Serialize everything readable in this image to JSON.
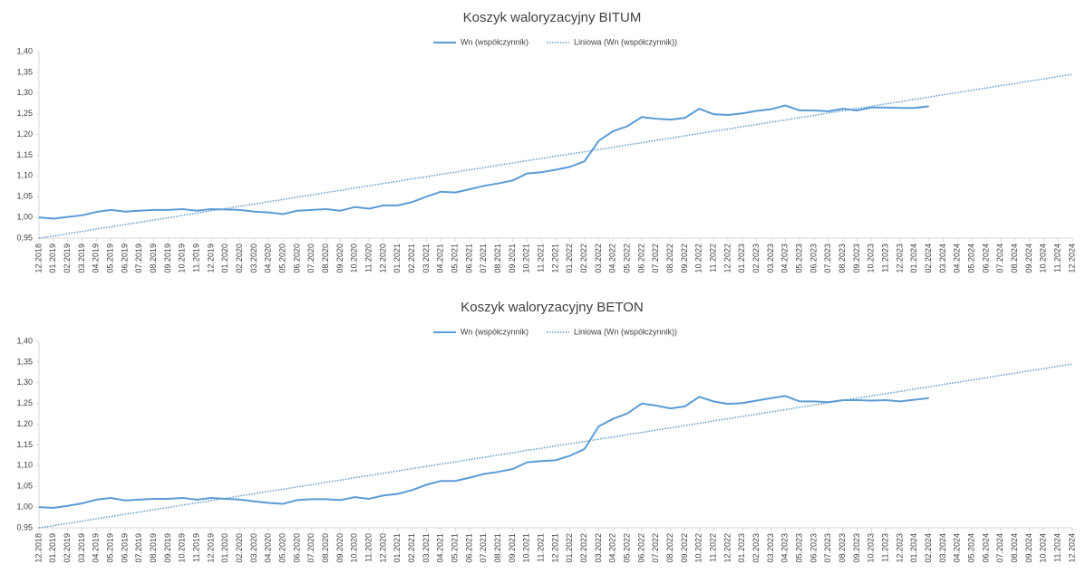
{
  "chart_data": [
    {
      "type": "line",
      "title": "Koszyk waloryzacyjny BITUM",
      "categories": [
        "12.2018",
        "01.2019",
        "02.2019",
        "03.2019",
        "04.2019",
        "05.2019",
        "06.2019",
        "07.2019",
        "08.2019",
        "09.2019",
        "10.2019",
        "11.2019",
        "12.2019",
        "01.2020",
        "02.2020",
        "03.2020",
        "04.2020",
        "05.2020",
        "06.2020",
        "07.2020",
        "08.2020",
        "09.2020",
        "10.2020",
        "11.2020",
        "12.2020",
        "01.2021",
        "02.2021",
        "03.2021",
        "04.2021",
        "05.2021",
        "06.2021",
        "07.2021",
        "08.2021",
        "09.2021",
        "10.2021",
        "11.2021",
        "12.2021",
        "01.2022",
        "02.2022",
        "03.2022",
        "04.2022",
        "05.2022",
        "06.2022",
        "07.2022",
        "08.2022",
        "09.2022",
        "10.2022",
        "11.2022",
        "12.2022",
        "01.2023",
        "02.2023",
        "03.2023",
        "04.2023",
        "05.2023",
        "06.2023",
        "07.2023",
        "08.2023",
        "09.2023",
        "10.2023",
        "11.2023",
        "12.2023",
        "01.2024",
        "02.2024",
        "03.2024",
        "04.2024",
        "05.2024",
        "06.2024",
        "07.2024",
        "08.2024",
        "09.2024",
        "10.2024",
        "11.2024",
        "12.2024"
      ],
      "series": [
        {
          "name": "Wn (współczynnik)",
          "color": "#5b9bd5",
          "dash": "solid",
          "values": [
            1.0,
            0.997,
            1.001,
            1.005,
            1.013,
            1.018,
            1.014,
            1.016,
            1.018,
            1.018,
            1.02,
            1.016,
            1.02,
            1.019,
            1.018,
            1.014,
            1.012,
            1.008,
            1.016,
            1.018,
            1.02,
            1.016,
            1.025,
            1.021,
            1.029,
            1.029,
            1.037,
            1.05,
            1.062,
            1.06,
            1.068,
            1.076,
            1.082,
            1.089,
            1.106,
            1.109,
            1.115,
            1.122,
            1.135,
            1.185,
            1.208,
            1.22,
            1.242,
            1.238,
            1.236,
            1.24,
            1.262,
            1.249,
            1.247,
            1.251,
            1.257,
            1.261,
            1.27,
            1.258,
            1.258,
            1.256,
            1.262,
            1.258,
            1.265,
            1.265,
            1.264,
            1.264,
            1.268,
            null,
            null,
            null,
            null,
            null,
            null,
            null,
            null,
            null,
            null
          ]
        },
        {
          "name": "Liniowa (Wn (współczynnik))",
          "color": "#5b9bd5",
          "dash": "dotted",
          "values": [
            0.95,
            0.955,
            0.961,
            0.966,
            0.972,
            0.977,
            0.983,
            0.988,
            0.994,
            0.999,
            1.005,
            1.01,
            1.016,
            1.021,
            1.027,
            1.032,
            1.038,
            1.043,
            1.049,
            1.054,
            1.06,
            1.065,
            1.071,
            1.076,
            1.082,
            1.087,
            1.093,
            1.098,
            1.104,
            1.109,
            1.115,
            1.12,
            1.126,
            1.131,
            1.137,
            1.142,
            1.148,
            1.153,
            1.158,
            1.164,
            1.169,
            1.175,
            1.18,
            1.186,
            1.191,
            1.197,
            1.202,
            1.208,
            1.213,
            1.219,
            1.224,
            1.23,
            1.235,
            1.241,
            1.246,
            1.252,
            1.257,
            1.263,
            1.268,
            1.274,
            1.279,
            1.285,
            1.29,
            1.296,
            1.301,
            1.307,
            1.312,
            1.318,
            1.323,
            1.329,
            1.334,
            1.34,
            1.345
          ]
        }
      ],
      "ylim": [
        0.95,
        1.4
      ],
      "yticks": [
        {
          "value": 0.95,
          "label": "0,95"
        },
        {
          "value": 1.0,
          "label": "1,00"
        },
        {
          "value": 1.05,
          "label": "1,05"
        },
        {
          "value": 1.1,
          "label": "1,10"
        },
        {
          "value": 1.15,
          "label": "1,15"
        },
        {
          "value": 1.2,
          "label": "1,20"
        },
        {
          "value": 1.25,
          "label": "1,25"
        },
        {
          "value": 1.3,
          "label": "1,30"
        },
        {
          "value": 1.35,
          "label": "1,35"
        },
        {
          "value": 1.4,
          "label": "1,40"
        }
      ],
      "legend": "top"
    },
    {
      "type": "line",
      "title": "Koszyk waloryzacyjny BETON",
      "categories": [
        "12.2018",
        "01.2019",
        "02.2019",
        "03.2019",
        "04.2019",
        "05.2019",
        "06.2019",
        "07.2019",
        "08.2019",
        "09.2019",
        "10.2019",
        "11.2019",
        "12.2019",
        "01.2020",
        "02.2020",
        "03.2020",
        "04.2020",
        "05.2020",
        "06.2020",
        "07.2020",
        "08.2020",
        "09.2020",
        "10.2020",
        "11.2020",
        "12.2020",
        "01.2021",
        "02.2021",
        "03.2021",
        "04.2021",
        "05.2021",
        "06.2021",
        "07.2021",
        "08.2021",
        "09.2021",
        "10.2021",
        "11.2021",
        "12.2021",
        "01.2022",
        "02.2022",
        "03.2022",
        "04.2022",
        "05.2022",
        "06.2022",
        "07.2022",
        "08.2022",
        "09.2022",
        "10.2022",
        "11.2022",
        "12.2022",
        "01.2023",
        "02.2023",
        "03.2023",
        "04.2023",
        "05.2023",
        "06.2023",
        "07.2023",
        "08.2023",
        "09.2023",
        "10.2023",
        "11.2023",
        "12.2023",
        "01.2024",
        "02.2024",
        "03.2024",
        "04.2024",
        "05.2024",
        "06.2024",
        "07.2024",
        "08.2024",
        "09.2024",
        "10.2024",
        "11.2024",
        "12.2024"
      ],
      "series": [
        {
          "name": "Wn (współczynnik)",
          "color": "#5b9bd5",
          "dash": "solid",
          "values": [
            1.0,
            0.998,
            1.003,
            1.009,
            1.018,
            1.022,
            1.016,
            1.018,
            1.02,
            1.02,
            1.022,
            1.018,
            1.022,
            1.02,
            1.018,
            1.014,
            1.01,
            1.008,
            1.017,
            1.019,
            1.019,
            1.017,
            1.024,
            1.02,
            1.028,
            1.032,
            1.041,
            1.054,
            1.063,
            1.063,
            1.071,
            1.08,
            1.085,
            1.092,
            1.108,
            1.111,
            1.113,
            1.124,
            1.14,
            1.195,
            1.213,
            1.226,
            1.25,
            1.245,
            1.238,
            1.243,
            1.266,
            1.255,
            1.249,
            1.251,
            1.257,
            1.263,
            1.268,
            1.255,
            1.255,
            1.253,
            1.258,
            1.258,
            1.257,
            1.258,
            1.255,
            1.259,
            1.263,
            null,
            null,
            null,
            null,
            null,
            null,
            null,
            null,
            null,
            null
          ]
        },
        {
          "name": "Liniowa (Wn (współczynnik))",
          "color": "#5b9bd5",
          "dash": "dotted",
          "values": [
            0.95,
            0.955,
            0.961,
            0.966,
            0.972,
            0.977,
            0.983,
            0.988,
            0.994,
            0.999,
            1.005,
            1.01,
            1.016,
            1.021,
            1.027,
            1.032,
            1.038,
            1.043,
            1.049,
            1.054,
            1.06,
            1.065,
            1.071,
            1.076,
            1.082,
            1.087,
            1.093,
            1.098,
            1.104,
            1.109,
            1.115,
            1.12,
            1.126,
            1.131,
            1.137,
            1.142,
            1.148,
            1.153,
            1.158,
            1.164,
            1.169,
            1.175,
            1.18,
            1.186,
            1.191,
            1.197,
            1.202,
            1.208,
            1.213,
            1.219,
            1.224,
            1.23,
            1.235,
            1.241,
            1.246,
            1.252,
            1.257,
            1.263,
            1.268,
            1.274,
            1.279,
            1.285,
            1.29,
            1.296,
            1.301,
            1.307,
            1.312,
            1.318,
            1.323,
            1.329,
            1.334,
            1.34,
            1.345
          ]
        }
      ],
      "ylim": [
        0.95,
        1.4
      ],
      "yticks": [
        {
          "value": 0.95,
          "label": "0,95"
        },
        {
          "value": 1.0,
          "label": "1,00"
        },
        {
          "value": 1.05,
          "label": "1,05"
        },
        {
          "value": 1.1,
          "label": "1,10"
        },
        {
          "value": 1.15,
          "label": "1,15"
        },
        {
          "value": 1.2,
          "label": "1,20"
        },
        {
          "value": 1.25,
          "label": "1,25"
        },
        {
          "value": 1.3,
          "label": "1,30"
        },
        {
          "value": 1.35,
          "label": "1,35"
        },
        {
          "value": 1.4,
          "label": "1,40"
        }
      ],
      "legend": "top"
    }
  ]
}
